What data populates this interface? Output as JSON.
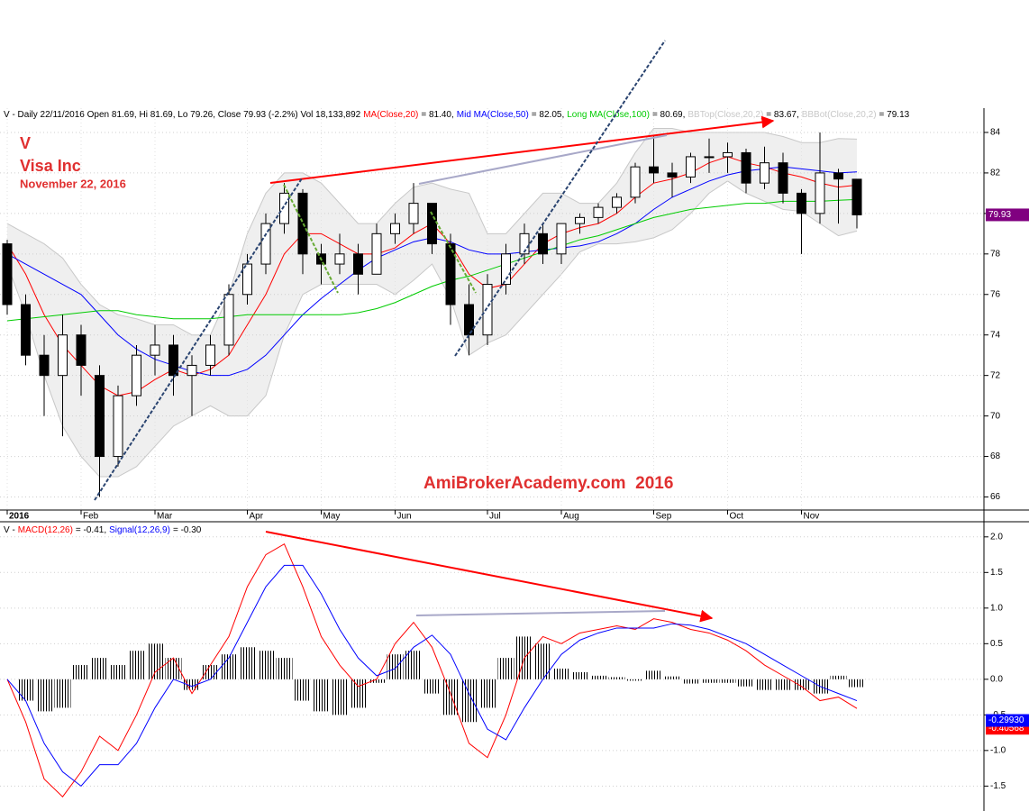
{
  "chart_data": [
    {
      "type": "candlestick",
      "header": "V - Daily 22/11/2016 Open 81.69, Hi 81.69, Lo 79.26, Close 79.93 (-2.2%) Vol 18,133,892",
      "symbol": "V",
      "name": "Visa Inc",
      "date": "November 22, 2016",
      "watermark": "AmiBrokerAcademy.com  2016",
      "categories": [
        "2016",
        null,
        null,
        null,
        "Feb",
        null,
        null,
        null,
        "Mar",
        null,
        null,
        null,
        null,
        "Apr",
        null,
        null,
        null,
        "May",
        null,
        null,
        null,
        "Jun",
        null,
        null,
        null,
        null,
        "Jul",
        null,
        null,
        null,
        "Aug",
        null,
        null,
        null,
        null,
        "Sep",
        null,
        null,
        null,
        "Oct",
        null,
        null,
        null,
        "Nov",
        null,
        null,
        null
      ],
      "open": [
        78.5,
        75.5,
        73,
        72,
        74,
        72,
        68,
        71,
        73,
        73.5,
        72,
        72.5,
        73.5,
        76,
        77.5,
        79.5,
        81,
        78,
        77.5,
        78,
        77,
        79,
        79.5,
        80.5,
        78.5,
        75.5,
        74,
        76.5,
        78,
        79,
        78,
        79.5,
        79.8,
        80.3,
        80.8,
        82.3,
        82,
        81.8,
        82.8,
        82.8,
        83,
        81.5,
        82.5,
        81,
        80,
        82,
        81.69
      ],
      "high": [
        78.7,
        76,
        74,
        75,
        74.5,
        72.5,
        71.5,
        73.5,
        74.5,
        74,
        73,
        74,
        76.5,
        78,
        80,
        81.5,
        81.2,
        78.5,
        79,
        78.5,
        79.5,
        80,
        81.5,
        80.5,
        79,
        76.5,
        77,
        78.5,
        79.5,
        79.5,
        79.5,
        80,
        80.5,
        81,
        82.5,
        83.8,
        82.5,
        83,
        83.7,
        83.5,
        83.2,
        83.3,
        83,
        81.2,
        84,
        82.2,
        81.69
      ],
      "low": [
        75,
        72.5,
        70,
        69,
        71,
        66,
        67.5,
        70.5,
        72,
        71,
        70,
        72,
        73,
        75.5,
        77,
        79,
        77,
        76.5,
        77,
        76,
        77,
        78.5,
        79,
        78,
        74.5,
        73,
        73.5,
        76,
        77.5,
        77.5,
        77.5,
        79,
        79.5,
        80,
        80.5,
        81.5,
        80.8,
        81.5,
        82,
        82,
        81,
        81.2,
        80.5,
        78,
        79.5,
        79.5,
        79.26
      ],
      "close": [
        75.5,
        73,
        72,
        74,
        72.5,
        68,
        71,
        73,
        73.5,
        72,
        72.5,
        73.5,
        76,
        77.5,
        79.5,
        81,
        78,
        77.5,
        78,
        77,
        79,
        79.5,
        80.5,
        78.5,
        75.5,
        74,
        76.5,
        78,
        79,
        78,
        79.5,
        79.8,
        80.3,
        80.8,
        82.3,
        82,
        81.8,
        82.8,
        82.8,
        83,
        81.5,
        82.5,
        81,
        80,
        82,
        81.7,
        79.93
      ],
      "last_color": "#800080",
      "series": [
        {
          "name": "MA(Close,20)",
          "legend": "= 81.40,",
          "color": "#ff0000",
          "values": [
            78.5,
            77,
            75,
            73.5,
            72.5,
            71.5,
            71,
            71.2,
            71.8,
            72.3,
            72,
            72.3,
            73,
            74.5,
            76,
            78,
            79,
            79,
            78.5,
            78,
            78,
            78.3,
            79,
            79.5,
            78.5,
            77,
            76.3,
            76.5,
            77.5,
            78.5,
            79,
            79.3,
            79.5,
            80,
            80.8,
            81.5,
            81.7,
            82,
            82.5,
            82.8,
            82.5,
            82.3,
            82,
            81.8,
            81.5,
            81.3,
            81.4
          ]
        },
        {
          "name": "Mid MA(Close,50)",
          "legend": "= 82.05,",
          "color": "#0000ff",
          "values": [
            78,
            77.5,
            77,
            76.5,
            76,
            75,
            74,
            73.3,
            72.8,
            72.5,
            72.2,
            72,
            72,
            72.3,
            73,
            74,
            75,
            75.8,
            76.5,
            77.2,
            77.8,
            78.2,
            78.6,
            78.8,
            78.6,
            78.2,
            78,
            78,
            78.1,
            78.2,
            78.3,
            78.4,
            78.6,
            79,
            79.5,
            80.2,
            80.8,
            81.2,
            81.6,
            81.9,
            82.1,
            82.2,
            82.3,
            82.2,
            82.1,
            82,
            82.05
          ]
        },
        {
          "name": "Long MA(Close,100)",
          "legend": "= 80.69,",
          "color": "#00cc00",
          "values": [
            74.7,
            74.8,
            74.9,
            75,
            75.1,
            75.2,
            75.2,
            75,
            74.9,
            74.8,
            74.8,
            74.8,
            74.9,
            75,
            75,
            75,
            75,
            75,
            75,
            75.1,
            75.3,
            75.6,
            76,
            76.4,
            76.7,
            76.9,
            77.2,
            77.5,
            77.8,
            78.1,
            78.4,
            78.7,
            78.9,
            79.2,
            79.5,
            79.8,
            80,
            80.2,
            80.3,
            80.4,
            80.5,
            80.5,
            80.6,
            80.6,
            80.6,
            80.65,
            80.69
          ]
        }
      ],
      "band": {
        "color": "#c8c8c8",
        "fill": "#efefef",
        "upper": {
          "name": "BBTop(Close,20,2)",
          "legend": "= 83.67,",
          "values": [
            79.5,
            79,
            78.5,
            77.8,
            76.5,
            75.5,
            75,
            74.8,
            74.5,
            74.5,
            74,
            74,
            76,
            79,
            81,
            82,
            82,
            81.5,
            80.5,
            79.5,
            79.5,
            80.5,
            81.3,
            81.5,
            81.2,
            81,
            79,
            79,
            80,
            81,
            81,
            80.5,
            80.5,
            81.5,
            83,
            84.2,
            84.2,
            84,
            84,
            84,
            84,
            84,
            83.8,
            83.5,
            83.5,
            83.7,
            83.67
          ]
        },
        "lower": {
          "name": "BBBot(Close,20,2)",
          "legend": "= 79.13",
          "values": [
            77.5,
            75,
            72,
            69.5,
            68,
            67,
            67,
            67.5,
            68.5,
            69.5,
            70,
            70.5,
            70,
            70,
            71,
            74,
            76,
            76.5,
            76.5,
            76.5,
            76.5,
            76,
            76.7,
            77.5,
            75.8,
            73,
            73.6,
            74,
            75,
            76,
            77,
            78.1,
            78.5,
            78.5,
            78.6,
            78.8,
            79.2,
            80,
            81,
            81.6,
            81,
            80.6,
            80.2,
            80.1,
            79.5,
            78.9,
            79.13
          ]
        }
      },
      "ylim": [
        65.4,
        85.2
      ],
      "yticks": [
        66,
        68,
        70,
        72,
        74,
        76,
        78,
        80,
        82,
        84
      ],
      "grid": true
    },
    {
      "type": "line",
      "header": "V -",
      "series": [
        {
          "name": "MACD(12,26)",
          "legend": "= -0.41,",
          "color": "#ff0000",
          "last_label": "-0.40568",
          "values": [
            0,
            -0.6,
            -1.4,
            -1.65,
            -1.3,
            -0.8,
            -1.0,
            -0.5,
            0.1,
            0.3,
            -0.2,
            0.2,
            0.6,
            1.3,
            1.75,
            1.9,
            1.3,
            0.6,
            0.2,
            -0.1,
            0,
            0.5,
            0.8,
            0.45,
            -0.2,
            -0.9,
            -1.1,
            -0.5,
            0.3,
            0.6,
            0.5,
            0.65,
            0.7,
            0.75,
            0.7,
            0.85,
            0.8,
            0.7,
            0.65,
            0.55,
            0.4,
            0.2,
            0.05,
            -0.1,
            -0.3,
            -0.25,
            -0.41
          ]
        },
        {
          "name": "Signal(12,26,9)",
          "legend": "= -0.30",
          "color": "#0000ff",
          "last_label": "-0.29930",
          "values": [
            0,
            -0.3,
            -0.9,
            -1.3,
            -1.5,
            -1.2,
            -1.2,
            -0.9,
            -0.4,
            0,
            -0.1,
            0,
            0.3,
            0.8,
            1.3,
            1.6,
            1.6,
            1.2,
            0.7,
            0.3,
            0.05,
            0.15,
            0.45,
            0.62,
            0.35,
            -0.2,
            -0.7,
            -0.85,
            -0.4,
            0,
            0.35,
            0.55,
            0.65,
            0.72,
            0.72,
            0.72,
            0.78,
            0.76,
            0.7,
            0.6,
            0.5,
            0.35,
            0.2,
            0.05,
            -0.1,
            -0.2,
            -0.3
          ]
        }
      ],
      "histogram": {
        "color": "#000000",
        "values": [
          0,
          -0.3,
          -0.45,
          -0.4,
          0.2,
          0.3,
          0.2,
          0.4,
          0.5,
          0.3,
          -0.15,
          0.2,
          0.35,
          0.45,
          0.4,
          0.3,
          -0.3,
          -0.45,
          -0.5,
          -0.4,
          -0.05,
          0.35,
          0.4,
          -0.2,
          -0.5,
          -0.6,
          -0.4,
          0.3,
          0.6,
          0.5,
          0.15,
          0.1,
          0.05,
          0.03,
          -0.02,
          0.12,
          0.04,
          -0.06,
          -0.05,
          -0.05,
          -0.1,
          -0.15,
          -0.15,
          -0.15,
          -0.2,
          0.05,
          -0.11
        ]
      },
      "ylim": [
        -1.85,
        2.2
      ],
      "yticks": [
        {
          "value": 2,
          "label": "2.0"
        },
        {
          "value": 1.5,
          "label": "1.5"
        },
        {
          "value": 1,
          "label": "1.0"
        },
        {
          "value": 0.5,
          "label": "0.5"
        },
        {
          "value": 0,
          "label": "0.0"
        },
        {
          "value": -0.5,
          "label": "-0.5"
        },
        {
          "value": -1,
          "label": "-1.0"
        },
        {
          "value": -1.5,
          "label": "-1.5"
        }
      ],
      "grid": true
    }
  ]
}
